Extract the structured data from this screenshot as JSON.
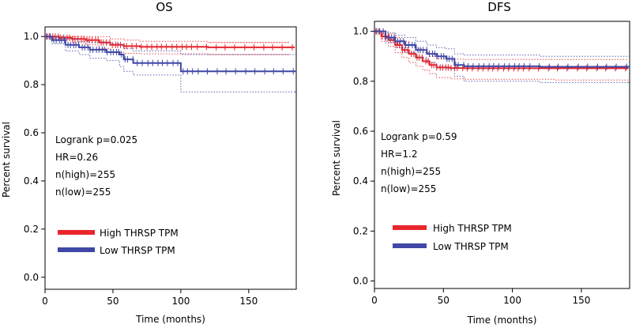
{
  "chart_data": [
    {
      "type": "line",
      "title": "OS",
      "xlabel": "Time (months)",
      "ylabel": "Percent survival",
      "xlim": [
        0,
        185
      ],
      "ylim": [
        -0.05,
        1.04
      ],
      "xticks": [
        "0",
        "50",
        "100",
        "150"
      ],
      "xtick_values": [
        0,
        50,
        100,
        150
      ],
      "yticks": [
        "0.0",
        "0.2",
        "0.4",
        "0.6",
        "0.8",
        "1.0"
      ],
      "ytick_values": [
        0.0,
        0.2,
        0.4,
        0.6,
        0.8,
        1.0
      ],
      "stats": [
        "Logrank p=0.025",
        "HR=0.26",
        "n(high)=255",
        "n(low)=255"
      ],
      "legend": [
        "High THRSP TPM",
        "Low THRSP TPM"
      ],
      "series": [
        {
          "name": "High THRSP TPM",
          "color": "#e8262c",
          "x": [
            0,
            10,
            20,
            30,
            40,
            48,
            58,
            70,
            120,
            180
          ],
          "y": [
            1.0,
            0.995,
            0.99,
            0.985,
            0.975,
            0.965,
            0.96,
            0.957,
            0.955,
            0.955
          ],
          "upper": [
            1.0,
            1.0,
            1.0,
            1.0,
            1.0,
            0.99,
            0.985,
            0.98,
            0.975,
            0.975
          ],
          "lower": [
            1.0,
            0.985,
            0.975,
            0.965,
            0.95,
            0.935,
            0.93,
            0.928,
            0.925,
            0.925
          ],
          "ci_end": 120
        },
        {
          "name": "Low THRSP TPM",
          "color": "#3f48a6",
          "x": [
            0,
            5,
            15,
            25,
            33,
            45,
            55,
            58,
            65,
            100,
            185
          ],
          "y": [
            1.0,
            0.985,
            0.965,
            0.955,
            0.945,
            0.935,
            0.925,
            0.905,
            0.89,
            0.855,
            0.855
          ],
          "upper": [
            1.0,
            1.0,
            0.99,
            0.98,
            0.975,
            0.97,
            0.965,
            0.95,
            0.94,
            0.925,
            0.925
          ],
          "lower": [
            1.0,
            0.97,
            0.94,
            0.925,
            0.91,
            0.9,
            0.875,
            0.855,
            0.84,
            0.77,
            0.77
          ]
        }
      ]
    },
    {
      "type": "line",
      "title": "DFS",
      "xlabel": "Time (months)",
      "ylabel": "Percent survival",
      "xlim": [
        0,
        185
      ],
      "ylim": [
        -0.03,
        1.04
      ],
      "xticks": [
        "0",
        "50",
        "100",
        "150"
      ],
      "xtick_values": [
        0,
        50,
        100,
        150
      ],
      "yticks": [
        "0.0",
        "0.2",
        "0.4",
        "0.6",
        "0.8",
        "1.0"
      ],
      "ytick_values": [
        0.0,
        0.2,
        0.4,
        0.6,
        0.8,
        1.0
      ],
      "stats": [
        "Logrank p=0.59",
        "HR=1.2",
        "n(high)=255",
        "n(low)=255"
      ],
      "legend": [
        "High THRSP TPM",
        "Low THRSP TPM"
      ],
      "series": [
        {
          "name": "High THRSP TPM",
          "color": "#e8262c",
          "x": [
            0,
            5,
            10,
            15,
            20,
            25,
            30,
            35,
            40,
            45,
            55,
            65,
            130,
            180
          ],
          "y": [
            1.0,
            0.98,
            0.965,
            0.945,
            0.925,
            0.91,
            0.895,
            0.88,
            0.865,
            0.855,
            0.853,
            0.852,
            0.852,
            0.852
          ],
          "upper": [
            1.0,
            1.0,
            0.99,
            0.975,
            0.96,
            0.945,
            0.93,
            0.915,
            0.9,
            0.89,
            0.888,
            0.887,
            0.887,
            0.887
          ],
          "lower": [
            1.0,
            0.96,
            0.94,
            0.915,
            0.895,
            0.875,
            0.86,
            0.845,
            0.83,
            0.815,
            0.81,
            0.808,
            0.805,
            0.805
          ]
        },
        {
          "name": "Low THRSP TPM",
          "color": "#3f48a6",
          "x": [
            0,
            8,
            15,
            22,
            30,
            38,
            45,
            52,
            58,
            65,
            120,
            185
          ],
          "y": [
            1.0,
            0.975,
            0.96,
            0.945,
            0.925,
            0.91,
            0.9,
            0.89,
            0.865,
            0.86,
            0.858,
            0.858
          ],
          "upper": [
            1.0,
            0.995,
            0.985,
            0.975,
            0.96,
            0.945,
            0.935,
            0.93,
            0.91,
            0.905,
            0.9,
            0.9
          ],
          "lower": [
            1.0,
            0.955,
            0.935,
            0.915,
            0.895,
            0.875,
            0.86,
            0.85,
            0.82,
            0.8,
            0.795,
            0.795
          ]
        }
      ]
    }
  ]
}
